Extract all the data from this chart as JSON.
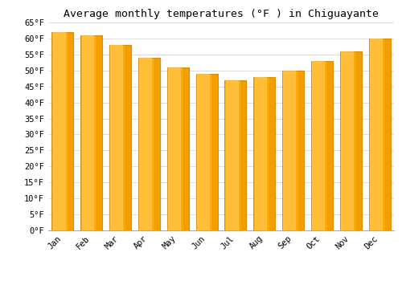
{
  "title": "Average monthly temperatures (°F ) in Chiguayante",
  "months": [
    "Jan",
    "Feb",
    "Mar",
    "Apr",
    "May",
    "Jun",
    "Jul",
    "Aug",
    "Sep",
    "Oct",
    "Nov",
    "Dec"
  ],
  "values": [
    62,
    61,
    58,
    54,
    51,
    49,
    47,
    48,
    50,
    53,
    56,
    60
  ],
  "bar_color_main": "#FFAA00",
  "bar_color_light": "#FFD060",
  "bar_color_dark": "#E88800",
  "bar_edge_color": "#CC8800",
  "ylim": [
    0,
    65
  ],
  "yticks": [
    0,
    5,
    10,
    15,
    20,
    25,
    30,
    35,
    40,
    45,
    50,
    55,
    60,
    65
  ],
  "background_color": "#ffffff",
  "grid_color": "#dddddd",
  "title_fontsize": 9.5,
  "tick_fontsize": 7.5,
  "font_family": "monospace"
}
